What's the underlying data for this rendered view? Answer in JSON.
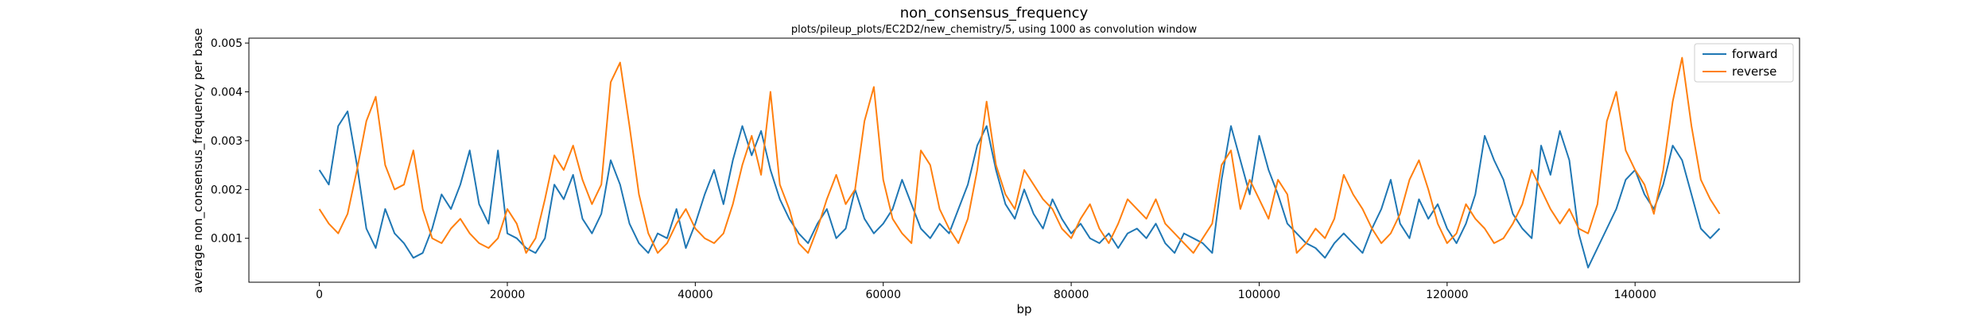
{
  "chart_data": {
    "type": "line",
    "title": "non_consensus_frequency",
    "subtitle": "plots/pileup_plots/EC2D2/new_chemistry/5, using 1000 as convolution window",
    "xlabel": "bp",
    "ylabel": "average non_consensus_frequency per base",
    "xlim": [
      -7500,
      157500
    ],
    "ylim": [
      0.0001,
      0.0051
    ],
    "xticks": [
      0,
      20000,
      40000,
      60000,
      80000,
      100000,
      120000,
      140000
    ],
    "xtick_labels": [
      "0",
      "20000",
      "40000",
      "60000",
      "80000",
      "100000",
      "120000",
      "140000"
    ],
    "yticks": [
      0.001,
      0.002,
      0.003,
      0.004,
      0.005
    ],
    "ytick_labels": [
      "0.001",
      "0.002",
      "0.003",
      "0.004",
      "0.005"
    ],
    "grid": false,
    "legend_position": "top-right",
    "series": [
      {
        "name": "forward",
        "color": "#1f77b4",
        "x": [
          0,
          1000,
          2000,
          3000,
          4000,
          5000,
          6000,
          7000,
          8000,
          9000,
          10000,
          11000,
          12000,
          13000,
          14000,
          15000,
          16000,
          17000,
          18000,
          19000,
          20000,
          21000,
          22000,
          23000,
          24000,
          25000,
          26000,
          27000,
          28000,
          29000,
          30000,
          31000,
          32000,
          33000,
          34000,
          35000,
          36000,
          37000,
          38000,
          39000,
          40000,
          41000,
          42000,
          43000,
          44000,
          45000,
          46000,
          47000,
          48000,
          49000,
          50000,
          51000,
          52000,
          53000,
          54000,
          55000,
          56000,
          57000,
          58000,
          59000,
          60000,
          61000,
          62000,
          63000,
          64000,
          65000,
          66000,
          67000,
          68000,
          69000,
          70000,
          71000,
          72000,
          73000,
          74000,
          75000,
          76000,
          77000,
          78000,
          79000,
          80000,
          81000,
          82000,
          83000,
          84000,
          85000,
          86000,
          87000,
          88000,
          89000,
          90000,
          91000,
          92000,
          93000,
          94000,
          95000,
          96000,
          97000,
          98000,
          99000,
          100000,
          101000,
          102000,
          103000,
          104000,
          105000,
          106000,
          107000,
          108000,
          109000,
          110000,
          111000,
          112000,
          113000,
          114000,
          115000,
          116000,
          117000,
          118000,
          119000,
          120000,
          121000,
          122000,
          123000,
          124000,
          125000,
          126000,
          127000,
          128000,
          129000,
          130000,
          131000,
          132000,
          133000,
          134000,
          135000,
          136000,
          137000,
          138000,
          139000,
          140000,
          141000,
          142000,
          143000,
          144000,
          145000,
          146000,
          147000,
          148000,
          149000
        ],
        "values": [
          0.0024,
          0.0021,
          0.0033,
          0.0036,
          0.0025,
          0.0012,
          0.0008,
          0.0016,
          0.0011,
          0.0009,
          0.0006,
          0.0007,
          0.0012,
          0.0019,
          0.0016,
          0.0021,
          0.0028,
          0.0017,
          0.0013,
          0.0028,
          0.0011,
          0.001,
          0.0008,
          0.0007,
          0.001,
          0.0021,
          0.0018,
          0.0023,
          0.0014,
          0.0011,
          0.0015,
          0.0026,
          0.0021,
          0.0013,
          0.0009,
          0.0007,
          0.0011,
          0.001,
          0.0016,
          0.0008,
          0.0013,
          0.0019,
          0.0024,
          0.0017,
          0.0026,
          0.0033,
          0.0027,
          0.0032,
          0.0024,
          0.0018,
          0.0014,
          0.0011,
          0.0009,
          0.0013,
          0.0016,
          0.001,
          0.0012,
          0.002,
          0.0014,
          0.0011,
          0.0013,
          0.0016,
          0.0022,
          0.0017,
          0.0012,
          0.001,
          0.0013,
          0.0011,
          0.0016,
          0.0021,
          0.0029,
          0.0033,
          0.0024,
          0.0017,
          0.0014,
          0.002,
          0.0015,
          0.0012,
          0.0018,
          0.0014,
          0.0011,
          0.0013,
          0.001,
          0.0009,
          0.0011,
          0.0008,
          0.0011,
          0.0012,
          0.001,
          0.0013,
          0.0009,
          0.0007,
          0.0011,
          0.001,
          0.0009,
          0.0007,
          0.0022,
          0.0033,
          0.0026,
          0.0019,
          0.0031,
          0.0024,
          0.0019,
          0.0013,
          0.0011,
          0.0009,
          0.0008,
          0.0006,
          0.0009,
          0.0011,
          0.0009,
          0.0007,
          0.0012,
          0.0016,
          0.0022,
          0.0013,
          0.001,
          0.0018,
          0.0014,
          0.0017,
          0.0012,
          0.0009,
          0.0013,
          0.0019,
          0.0031,
          0.0026,
          0.0022,
          0.0015,
          0.0012,
          0.001,
          0.0029,
          0.0023,
          0.0032,
          0.0026,
          0.0011,
          0.0004,
          0.0008,
          0.0012,
          0.0016,
          0.0022,
          0.0024,
          0.0019,
          0.0016,
          0.0021,
          0.0029,
          0.0026,
          0.0019,
          0.0012,
          0.001,
          0.0012
        ]
      },
      {
        "name": "reverse",
        "color": "#ff7f0e",
        "x": [
          0,
          1000,
          2000,
          3000,
          4000,
          5000,
          6000,
          7000,
          8000,
          9000,
          10000,
          11000,
          12000,
          13000,
          14000,
          15000,
          16000,
          17000,
          18000,
          19000,
          20000,
          21000,
          22000,
          23000,
          24000,
          25000,
          26000,
          27000,
          28000,
          29000,
          30000,
          31000,
          32000,
          33000,
          34000,
          35000,
          36000,
          37000,
          38000,
          39000,
          40000,
          41000,
          42000,
          43000,
          44000,
          45000,
          46000,
          47000,
          48000,
          49000,
          50000,
          51000,
          52000,
          53000,
          54000,
          55000,
          56000,
          57000,
          58000,
          59000,
          60000,
          61000,
          62000,
          63000,
          64000,
          65000,
          66000,
          67000,
          68000,
          69000,
          70000,
          71000,
          72000,
          73000,
          74000,
          75000,
          76000,
          77000,
          78000,
          79000,
          80000,
          81000,
          82000,
          83000,
          84000,
          85000,
          86000,
          87000,
          88000,
          89000,
          90000,
          91000,
          92000,
          93000,
          94000,
          95000,
          96000,
          97000,
          98000,
          99000,
          100000,
          101000,
          102000,
          103000,
          104000,
          105000,
          106000,
          107000,
          108000,
          109000,
          110000,
          111000,
          112000,
          113000,
          114000,
          115000,
          116000,
          117000,
          118000,
          119000,
          120000,
          121000,
          122000,
          123000,
          124000,
          125000,
          126000,
          127000,
          128000,
          129000,
          130000,
          131000,
          132000,
          133000,
          134000,
          135000,
          136000,
          137000,
          138000,
          139000,
          140000,
          141000,
          142000,
          143000,
          144000,
          145000,
          146000,
          147000,
          148000,
          149000
        ],
        "values": [
          0.0016,
          0.0013,
          0.0011,
          0.0015,
          0.0024,
          0.0034,
          0.0039,
          0.0025,
          0.002,
          0.0021,
          0.0028,
          0.0016,
          0.001,
          0.0009,
          0.0012,
          0.0014,
          0.0011,
          0.0009,
          0.0008,
          0.001,
          0.0016,
          0.0013,
          0.0007,
          0.001,
          0.0018,
          0.0027,
          0.0024,
          0.0029,
          0.0022,
          0.0017,
          0.0021,
          0.0042,
          0.0046,
          0.0033,
          0.0019,
          0.0011,
          0.0007,
          0.0009,
          0.0013,
          0.0016,
          0.0012,
          0.001,
          0.0009,
          0.0011,
          0.0017,
          0.0025,
          0.0031,
          0.0023,
          0.004,
          0.0021,
          0.0016,
          0.0009,
          0.0007,
          0.0012,
          0.0018,
          0.0023,
          0.0017,
          0.002,
          0.0034,
          0.0041,
          0.0022,
          0.0014,
          0.0011,
          0.0009,
          0.0028,
          0.0025,
          0.0016,
          0.0012,
          0.0009,
          0.0014,
          0.0024,
          0.0038,
          0.0025,
          0.0019,
          0.0016,
          0.0024,
          0.0021,
          0.0018,
          0.0016,
          0.0012,
          0.001,
          0.0014,
          0.0017,
          0.0012,
          0.0009,
          0.0013,
          0.0018,
          0.0016,
          0.0014,
          0.0018,
          0.0013,
          0.0011,
          0.0009,
          0.0007,
          0.001,
          0.0013,
          0.0025,
          0.0028,
          0.0016,
          0.0022,
          0.0018,
          0.0014,
          0.0022,
          0.0019,
          0.0007,
          0.0009,
          0.0012,
          0.001,
          0.0014,
          0.0023,
          0.0019,
          0.0016,
          0.0012,
          0.0009,
          0.0011,
          0.0015,
          0.0022,
          0.0026,
          0.002,
          0.0013,
          0.0009,
          0.0011,
          0.0017,
          0.0014,
          0.0012,
          0.0009,
          0.001,
          0.0013,
          0.0017,
          0.0024,
          0.002,
          0.0016,
          0.0013,
          0.0016,
          0.0012,
          0.0011,
          0.0017,
          0.0034,
          0.004,
          0.0028,
          0.0024,
          0.0021,
          0.0015,
          0.0024,
          0.0038,
          0.0047,
          0.0033,
          0.0022,
          0.0018,
          0.0015
        ]
      }
    ]
  }
}
